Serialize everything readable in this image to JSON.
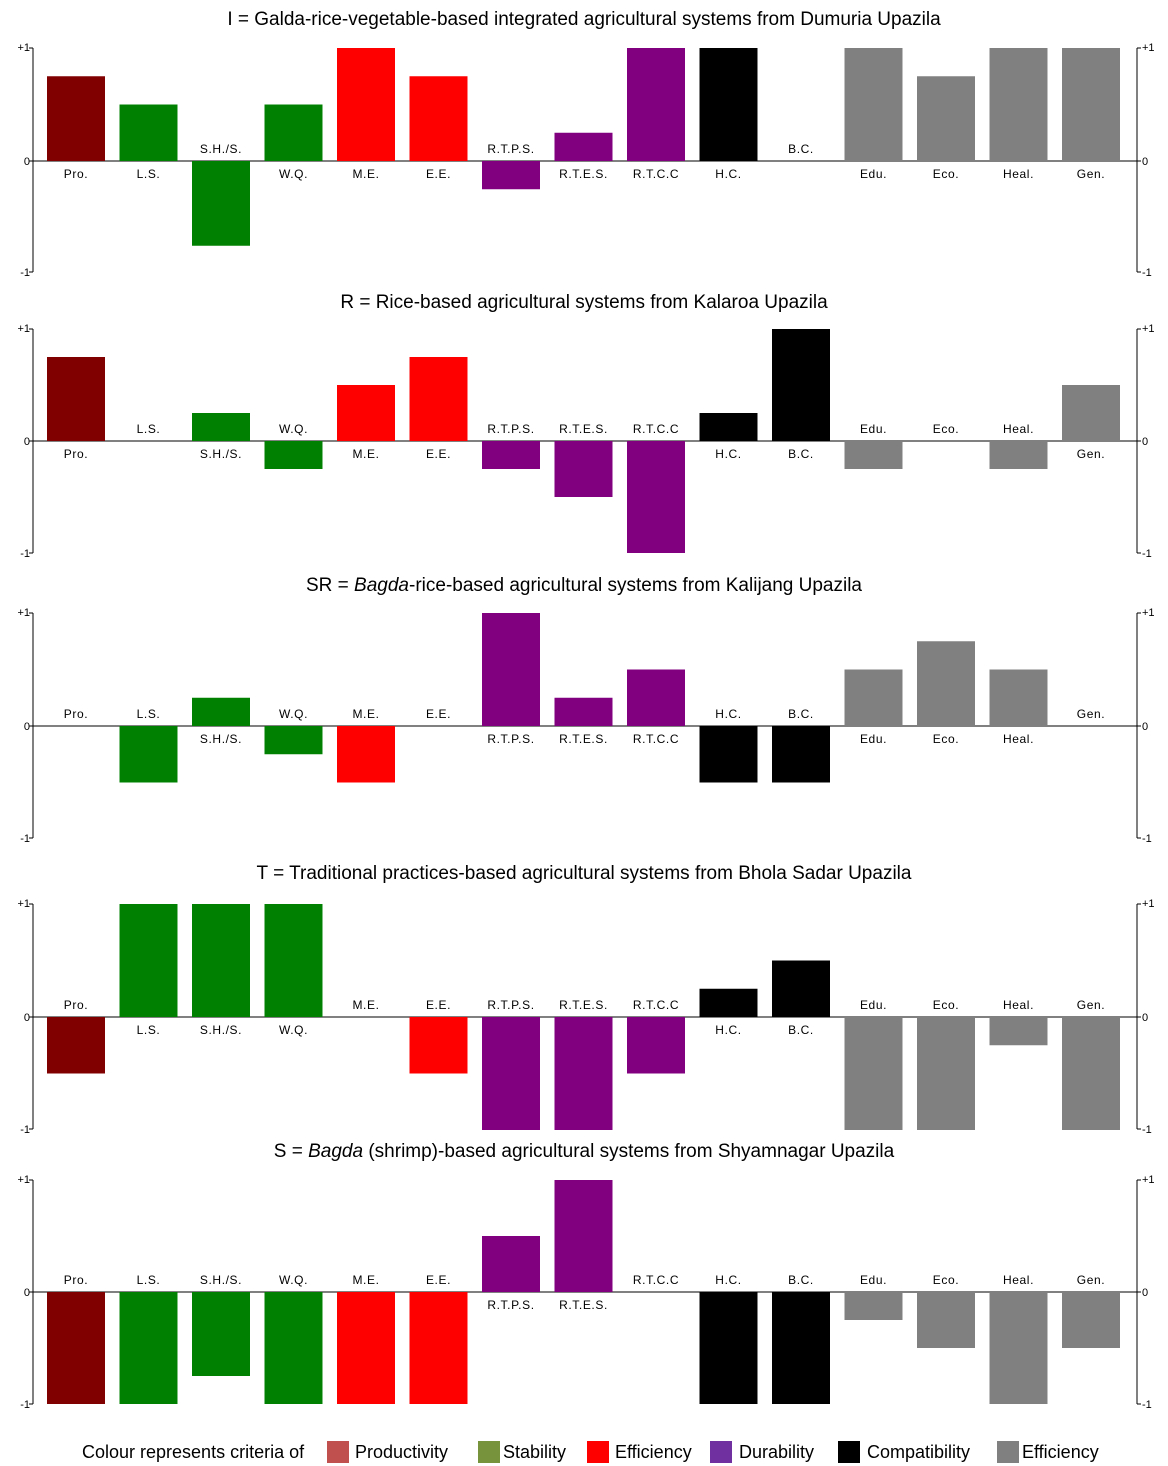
{
  "chart_data": [
    {
      "type": "bar",
      "title_prefix": "I = ",
      "title_italic": "",
      "title_suffix": "Galda-rice-vegetable-based integrated agricultural systems from Dumuria Upazila",
      "categories": [
        "Pro.",
        "L.S.",
        "S.H./S.",
        "W.Q.",
        "M.E.",
        "E.E.",
        "R.T.P.S.",
        "R.T.E.S.",
        "R.T.C.C",
        "H.C.",
        "B.C.",
        "Edu.",
        "Eco.",
        "Heal.",
        "Gen."
      ],
      "values": [
        0.75,
        0.5,
        -0.75,
        0.5,
        1,
        0.75,
        -0.25,
        0.25,
        1,
        1,
        0,
        1,
        0.75,
        1,
        1
      ],
      "ylim": [
        -1,
        1
      ],
      "yticks": [
        "+1",
        "0",
        "-1"
      ]
    },
    {
      "type": "bar",
      "title_prefix": "R = ",
      "title_italic": "",
      "title_suffix": "Rice-based agricultural systems from Kalaroa Upazila",
      "categories": [
        "Pro.",
        "L.S.",
        "S.H./S.",
        "W.Q.",
        "M.E.",
        "E.E.",
        "R.T.P.S.",
        "R.T.E.S.",
        "R.T.C.C",
        "H.C.",
        "B.C.",
        "Edu.",
        "Eco.",
        "Heal.",
        "Gen."
      ],
      "values": [
        0.75,
        0,
        0.25,
        -0.25,
        0.5,
        0.75,
        -0.25,
        -0.5,
        -1,
        0.25,
        1,
        -0.25,
        0,
        -0.25,
        0.5
      ],
      "ylim": [
        -1,
        1
      ],
      "yticks": [
        "+1",
        "0",
        "-1"
      ]
    },
    {
      "type": "bar",
      "title_prefix": "SR = ",
      "title_italic": "Bagda",
      "title_suffix": "-rice-based agricultural systems from Kalijang Upazila",
      "categories": [
        "Pro.",
        "L.S.",
        "S.H./S.",
        "W.Q.",
        "M.E.",
        "E.E.",
        "R.T.P.S.",
        "R.T.E.S.",
        "R.T.C.C",
        "H.C.",
        "B.C.",
        "Edu.",
        "Eco.",
        "Heal.",
        "Gen."
      ],
      "values": [
        0,
        -0.5,
        0.25,
        -0.25,
        -0.5,
        0,
        1,
        0.25,
        0.5,
        -0.5,
        -0.5,
        0.5,
        0.75,
        0.5,
        0
      ],
      "ylim": [
        -1,
        1
      ],
      "yticks": [
        "+1",
        "0",
        "-1"
      ]
    },
    {
      "type": "bar",
      "title_prefix": "T = ",
      "title_italic": "",
      "title_suffix": "Traditional practices-based agricultural systems from Bhola Sadar Upazila",
      "categories": [
        "Pro.",
        "L.S.",
        "S.H./S.",
        "W.Q.",
        "M.E.",
        "E.E.",
        "R.T.P.S.",
        "R.T.E.S.",
        "R.T.C.C",
        "H.C.",
        "B.C.",
        "Edu.",
        "Eco.",
        "Heal.",
        "Gen."
      ],
      "values": [
        -0.5,
        1,
        1,
        1,
        0,
        -0.5,
        -1,
        -1,
        -0.5,
        0.25,
        0.5,
        -1,
        -1,
        -0.25,
        -1
      ],
      "ylim": [
        -1,
        1
      ],
      "yticks": [
        "+1",
        "0",
        "-1"
      ]
    },
    {
      "type": "bar",
      "title_prefix": "S = ",
      "title_italic": "Bagda",
      "title_suffix": " (shrimp)-based agricultural systems from Shyamnagar Upazila",
      "categories": [
        "Pro.",
        "L.S.",
        "S.H./S.",
        "W.Q.",
        "M.E.",
        "E.E.",
        "R.T.P.S.",
        "R.T.E.S.",
        "R.T.C.C",
        "H.C.",
        "B.C.",
        "Edu.",
        "Eco.",
        "Heal.",
        "Gen."
      ],
      "values": [
        -1,
        -1,
        -0.75,
        -1,
        -1,
        -1,
        0.5,
        1,
        0,
        -1,
        -1,
        -0.25,
        -0.5,
        -1,
        -0.5
      ],
      "ylim": [
        -1,
        1
      ],
      "yticks": [
        "+1",
        "0",
        "-1"
      ]
    }
  ],
  "category_colors": [
    "#800000",
    "#008000",
    "#008000",
    "#008000",
    "#ff0000",
    "#ff0000",
    "#800080",
    "#800080",
    "#800080",
    "#000000",
    "#000000",
    "#808080",
    "#808080",
    "#808080",
    "#808080"
  ],
  "legend": {
    "intro": "Colour represents criteria of",
    "items": [
      {
        "label": "Productivity",
        "color": "#c0504d"
      },
      {
        "label": "Stability",
        "color": "#77933c"
      },
      {
        "label": "Efficiency",
        "color": "#ff0000"
      },
      {
        "label": "Durability",
        "color": "#7030a0"
      },
      {
        "label": "Compatibility",
        "color": "#000000"
      },
      {
        "label": "Efficiency",
        "color": "#808080"
      }
    ]
  }
}
